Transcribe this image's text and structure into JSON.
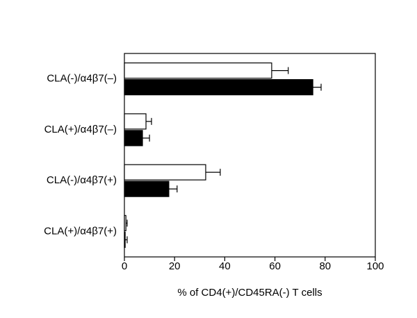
{
  "chart_data": {
    "type": "hbar",
    "xlabel": "% of CD4(+)/CD45RA(-) T cells",
    "categories": [
      "CLA(-)/α4β7(–)",
      "CLA(+)/α4β7(–)",
      "CLA(-)/α4β7(+)",
      "CLA(+)/α4β7(+)"
    ],
    "series": [
      {
        "color": "#ffffff",
        "values": [
          58.7,
          8.6,
          32.4,
          0.6
        ],
        "errors": [
          6.6,
          2.2,
          5.8,
          0.5
        ]
      },
      {
        "color": "#000000",
        "values": [
          75.1,
          7.2,
          17.7,
          0.3
        ],
        "errors": [
          3.3,
          2.8,
          3.3,
          0.8
        ]
      }
    ],
    "xlim": [
      0,
      100
    ],
    "xticks": [
      0,
      20,
      40,
      60,
      80,
      100
    ]
  }
}
